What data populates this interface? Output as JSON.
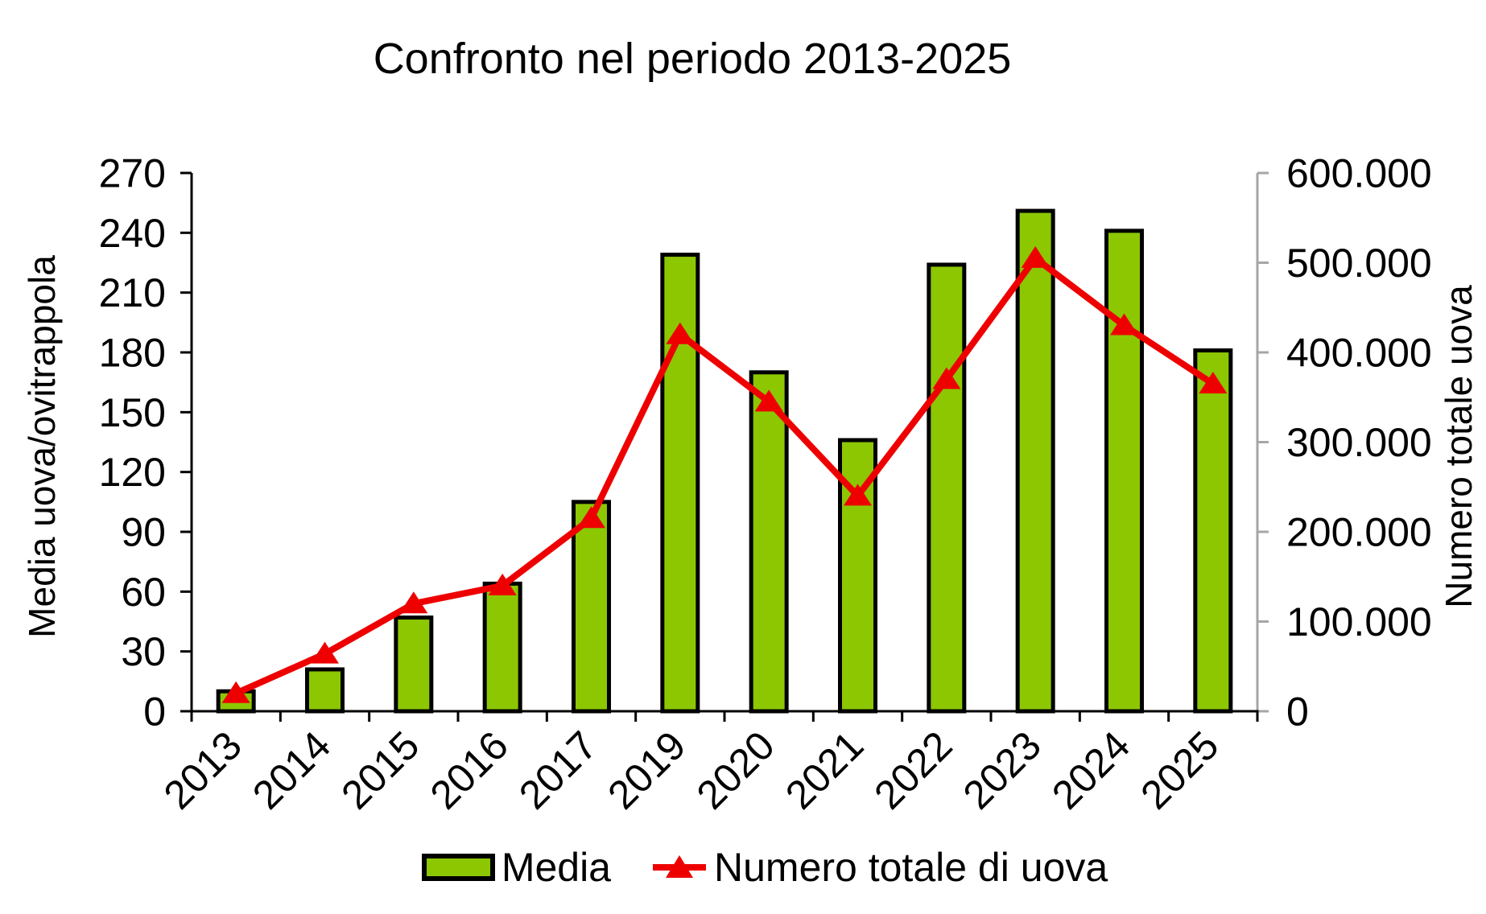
{
  "page": {
    "background": "#FFFFFF"
  },
  "chart_data": {
    "type": "bar",
    "subtype": "combo-bar-line",
    "title": "Confronto nel periodo 2013-2025",
    "categories": [
      "2013",
      "2014",
      "2015",
      "2016",
      "2017",
      "2019",
      "2020",
      "2021",
      "2022",
      "2023",
      "2024",
      "2025"
    ],
    "series": [
      {
        "name": "Media",
        "type": "bar",
        "axis": "left",
        "color": "#8CC702",
        "border_color": "#000000",
        "values": [
          10,
          21,
          47,
          64,
          105,
          229,
          170,
          136,
          224,
          251,
          241,
          181
        ]
      },
      {
        "name": "Numero totale di uova",
        "type": "line",
        "axis": "right",
        "color": "#EE0000",
        "marker": "triangle-up",
        "values": [
          20000,
          64000,
          120000,
          140000,
          215000,
          420000,
          345000,
          240000,
          370000,
          505000,
          430000,
          365000
        ]
      }
    ],
    "left_axis": {
      "title": "Media uova/ovitrappola",
      "min": 0,
      "max": 270,
      "step": 30,
      "tick_labels": [
        "0",
        "30",
        "60",
        "90",
        "120",
        "150",
        "180",
        "210",
        "240",
        "270"
      ],
      "color": "#000000"
    },
    "right_axis": {
      "title": "Numero totale uova",
      "min": 0,
      "max": 600000,
      "step": 100000,
      "tick_labels": [
        "0",
        "100.000",
        "200.000",
        "300.000",
        "400.000",
        "500.000",
        "600.000"
      ],
      "color": "#A6A6A6"
    },
    "x_axis": {
      "color": "#000000"
    },
    "legend": {
      "position": "bottom",
      "items": [
        {
          "label": "Media",
          "swatch": "bar"
        },
        {
          "label": "Numero totale di uova",
          "swatch": "line-triangle"
        }
      ]
    },
    "grid": false,
    "ylim_left": [
      0,
      270
    ],
    "ylim_right": [
      0,
      600000
    ]
  }
}
